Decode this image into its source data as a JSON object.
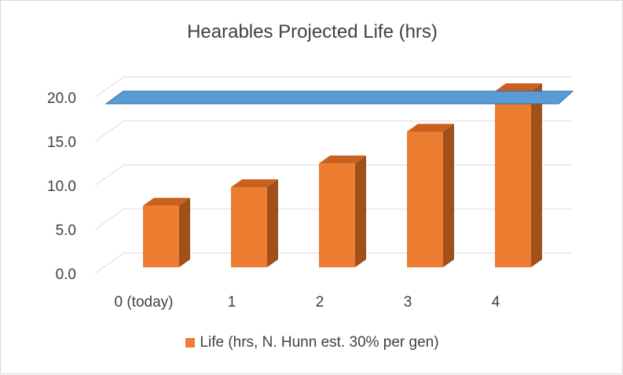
{
  "chart_data": {
    "type": "bar",
    "title": "Hearables Projected Life (hrs)",
    "categories": [
      "0 (today)",
      "1",
      "2",
      "3",
      "4"
    ],
    "series": [
      {
        "name": "Life (hrs, N. Hunn est. 30% per gen)",
        "values": [
          7.0,
          9.1,
          11.8,
          15.4,
          20.0
        ],
        "color": "#ed7d31"
      }
    ],
    "y_ticks": [
      "0.0",
      "5.0",
      "10.0",
      "15.0",
      "20.0"
    ],
    "ylim": [
      0,
      20
    ],
    "reference_plane": {
      "value": 20.0,
      "color": "#5b9bd5"
    },
    "grid": true,
    "legend_position": "bottom",
    "style": "3d-column"
  }
}
